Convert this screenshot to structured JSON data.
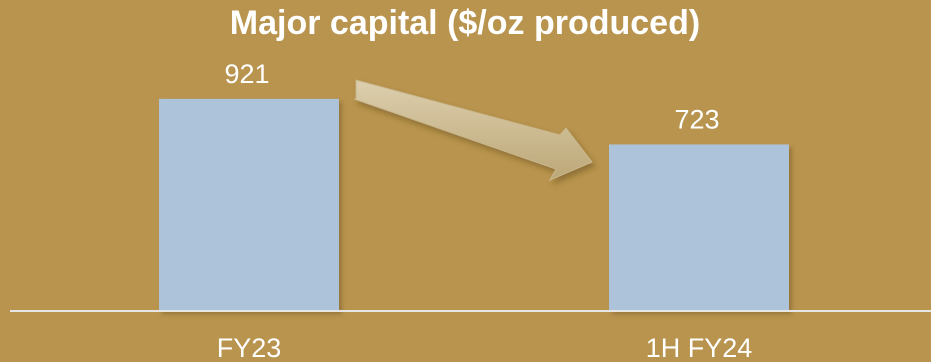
{
  "colors": {
    "background": "#b8944e",
    "bar": "#adc3d9",
    "axis": "#e6e6e6",
    "text": "#ffffff",
    "arrow": "#cdbb95"
  },
  "chart_data": {
    "type": "bar",
    "title": "Major capital ($/oz produced)",
    "categories": [
      "FY23",
      "1H FY24"
    ],
    "values": [
      921,
      723
    ],
    "value_labels": [
      "921",
      "723"
    ],
    "xlabel": "",
    "ylabel": "",
    "ylim": [
      0,
      1350
    ],
    "grid": false,
    "legend": "none",
    "annotations": [
      {
        "type": "arrow",
        "from": "FY23",
        "to": "1H FY24",
        "direction": "decrease"
      }
    ]
  }
}
